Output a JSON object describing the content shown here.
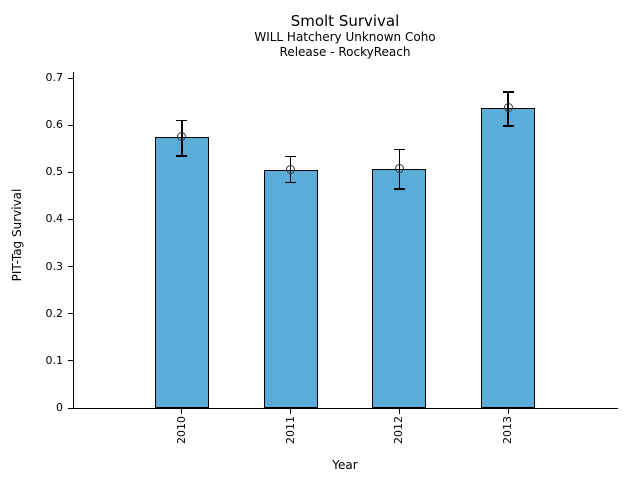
{
  "chart_data": {
    "type": "bar",
    "title": "Smolt Survival",
    "subtitle_line1": "WILL Hatchery Unknown Coho",
    "subtitle_line2": "Release - RockyReach",
    "categories": [
      "2010",
      "2011",
      "2012",
      "2013"
    ],
    "values": [
      0.575,
      0.505,
      0.508,
      0.637
    ],
    "error_low": [
      0.535,
      0.478,
      0.465,
      0.598
    ],
    "error_high": [
      0.61,
      0.533,
      0.548,
      0.67
    ],
    "xlabel": "Year",
    "ylabel": "PIT-Tag Survival",
    "ylim": [
      0,
      0.7
    ],
    "yticks": [
      0,
      0.1,
      0.2,
      0.3,
      0.4,
      0.5,
      0.6,
      0.7
    ],
    "ytick_labels": [
      "0",
      "0.1",
      "0.2",
      "0.3",
      "0.4",
      "0.5",
      "0.6",
      "0.7"
    ],
    "bar_color": "#5BACD8",
    "bar_edge_color": "#000000",
    "error_bar_color": "#000000",
    "marker": "open-circle",
    "marker_edge_color": "#3a3a3a",
    "axis_color": "#000000",
    "grid": false,
    "legend_position": "none"
  }
}
